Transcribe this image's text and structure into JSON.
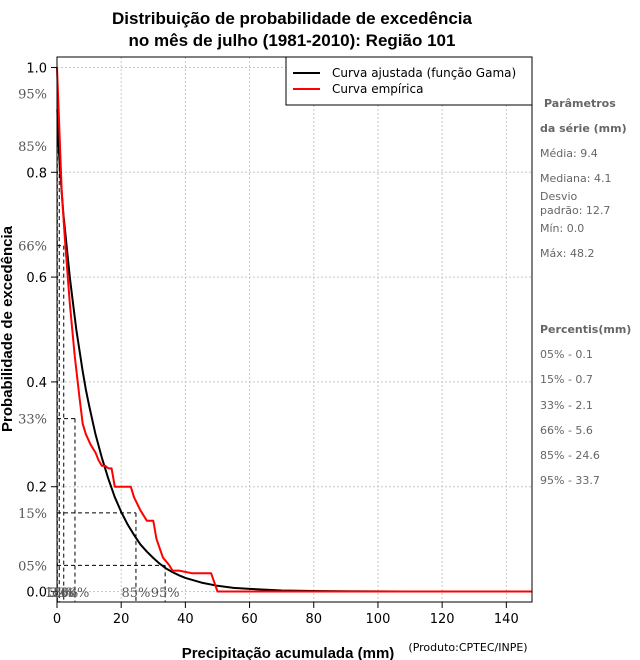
{
  "chart_data": {
    "type": "line",
    "title_lines": [
      "Distribuição de probabilidade de excedência",
      "no mês de julho (1981-2010): Região 101"
    ],
    "xlabel": "Precipitação acumulada (mm)",
    "ylabel": "Probabilidade de excedência",
    "credit": "(Produto:CPTEC/INPE)",
    "xlim": [
      0,
      148
    ],
    "ylim": [
      -0.02,
      1.02
    ],
    "x_ticks": [
      0,
      20,
      40,
      60,
      80,
      100,
      120,
      140
    ],
    "x_tick_labels": [
      "0",
      "20",
      "40",
      "60",
      "80",
      "100",
      "120",
      "140"
    ],
    "y_ticks": [
      0.0,
      0.2,
      0.4,
      0.6,
      0.8,
      1.0
    ],
    "y_tick_labels": [
      "0.0",
      "0.2",
      "0.4",
      "0.6",
      "0.8",
      "1.0"
    ],
    "grid": true,
    "legend_position": "top-right",
    "series": [
      {
        "name": "Curva ajustada (função Gama)",
        "color": "#000000",
        "x": [
          0.1,
          0.5,
          1,
          2,
          3,
          4,
          5,
          6,
          7,
          8,
          9,
          10,
          12,
          14,
          16,
          18,
          20,
          22,
          24,
          26,
          28,
          30,
          32,
          34,
          36,
          38,
          40,
          45,
          50,
          55,
          60,
          70,
          80,
          90,
          100,
          108
        ],
        "y": [
          0.92,
          0.85,
          0.8,
          0.72,
          0.66,
          0.6,
          0.55,
          0.5,
          0.46,
          0.42,
          0.385,
          0.355,
          0.3,
          0.255,
          0.215,
          0.18,
          0.152,
          0.128,
          0.108,
          0.09,
          0.076,
          0.064,
          0.053,
          0.044,
          0.037,
          0.031,
          0.026,
          0.017,
          0.011,
          0.007,
          0.005,
          0.002,
          0.001,
          0.0005,
          0.0002,
          0.0001
        ]
      },
      {
        "name": "Curva empírica",
        "color": "#ff0000",
        "x": [
          0,
          0.2,
          0.8,
          1.5,
          2.5,
          4,
          5.5,
          7,
          8,
          9,
          10.5,
          12,
          13,
          14,
          15,
          16,
          17,
          18,
          20,
          22,
          23,
          24,
          26,
          28,
          30,
          31,
          33,
          35,
          36,
          38,
          42,
          48,
          50,
          148
        ],
        "y": [
          1.0,
          0.97,
          0.87,
          0.76,
          0.67,
          0.55,
          0.45,
          0.37,
          0.32,
          0.3,
          0.28,
          0.265,
          0.25,
          0.24,
          0.24,
          0.235,
          0.235,
          0.2,
          0.2,
          0.2,
          0.2,
          0.18,
          0.155,
          0.135,
          0.135,
          0.1,
          0.065,
          0.05,
          0.04,
          0.04,
          0.035,
          0.035,
          0.0,
          0.0
        ]
      }
    ],
    "percentile_markers": [
      {
        "label": "5%",
        "prob": 0.95,
        "value": 0.1,
        "left_label": "95%"
      },
      {
        "label": "15%",
        "prob": 0.85,
        "value": 0.7,
        "left_label": "85%"
      },
      {
        "label": "33%",
        "prob": 0.66,
        "value": 2.1,
        "left_label": "66%"
      },
      {
        "label": "66%",
        "prob": 0.33,
        "value": 5.6,
        "left_label": "33%"
      },
      {
        "label": "85%",
        "prob": 0.15,
        "value": 24.6,
        "left_label": "15%"
      },
      {
        "label": "95%",
        "prob": 0.05,
        "value": 33.7,
        "left_label": "05%"
      }
    ]
  },
  "legend": {
    "fitted": "Curva ajustada (função Gama)",
    "empirical": "Curva empírica"
  },
  "parameters": {
    "heading_1": "Parâmetros",
    "heading_2": "da série (mm)",
    "media": "Média: 9.4",
    "mediana": "Mediana: 4.1",
    "desvio_1": "Desvio",
    "desvio_2": "padrão: 12.7",
    "min": "Mín: 0.0",
    "max": "Máx: 48.2"
  },
  "percentis": {
    "heading": "Percentis(mm)",
    "items": [
      "05% - 0.1",
      "15% - 0.7",
      "33% - 2.1",
      "66% - 5.6",
      "85% - 24.6",
      "95% - 33.7"
    ]
  }
}
